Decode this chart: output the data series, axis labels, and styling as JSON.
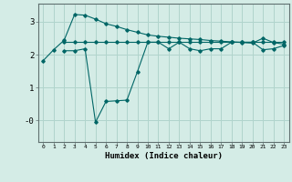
{
  "xlabel": "Humidex (Indice chaleur)",
  "ylabel": "",
  "background_color": "#d4ece6",
  "grid_color": "#b0d4cc",
  "line_color": "#006666",
  "xlim": [
    -0.5,
    23.5
  ],
  "ylim": [
    -0.65,
    3.55
  ],
  "xticks": [
    0,
    1,
    2,
    3,
    4,
    5,
    6,
    7,
    8,
    9,
    10,
    11,
    12,
    13,
    14,
    15,
    16,
    17,
    18,
    19,
    20,
    21,
    22,
    23
  ],
  "yticks": [
    0,
    1,
    2,
    3
  ],
  "ytick_labels": [
    "-0",
    "1",
    "2",
    "3"
  ],
  "line1_x": [
    0,
    1,
    2,
    3,
    4,
    5,
    6,
    7,
    8,
    9,
    10,
    11,
    12,
    13,
    14,
    15,
    16,
    17,
    18,
    19,
    20,
    21,
    22,
    23
  ],
  "line1_y": [
    1.82,
    2.15,
    2.44,
    3.22,
    3.2,
    3.08,
    2.94,
    2.86,
    2.76,
    2.68,
    2.6,
    2.56,
    2.53,
    2.5,
    2.48,
    2.46,
    2.43,
    2.41,
    2.39,
    2.37,
    2.35,
    2.5,
    2.37,
    2.32
  ],
  "line2_x": [
    2,
    3,
    4,
    5,
    6,
    7,
    8,
    9,
    10,
    11,
    12,
    13,
    14,
    15,
    16,
    17,
    18,
    19,
    20,
    21,
    22,
    23
  ],
  "line2_y": [
    2.38,
    2.38,
    2.38,
    2.38,
    2.38,
    2.38,
    2.38,
    2.38,
    2.38,
    2.38,
    2.38,
    2.38,
    2.38,
    2.38,
    2.38,
    2.38,
    2.38,
    2.38,
    2.38,
    2.38,
    2.38,
    2.38
  ],
  "line3_x": [
    2,
    3,
    4,
    5,
    6,
    7,
    8,
    9,
    10,
    11,
    12,
    13,
    14,
    15,
    16,
    17,
    18,
    19,
    20,
    21,
    22,
    23
  ],
  "line3_y": [
    2.12,
    2.12,
    2.18,
    -0.05,
    0.58,
    0.6,
    0.62,
    1.48,
    2.38,
    2.38,
    2.18,
    2.38,
    2.18,
    2.12,
    2.18,
    2.18,
    2.38,
    2.38,
    2.38,
    2.15,
    2.18,
    2.28
  ]
}
